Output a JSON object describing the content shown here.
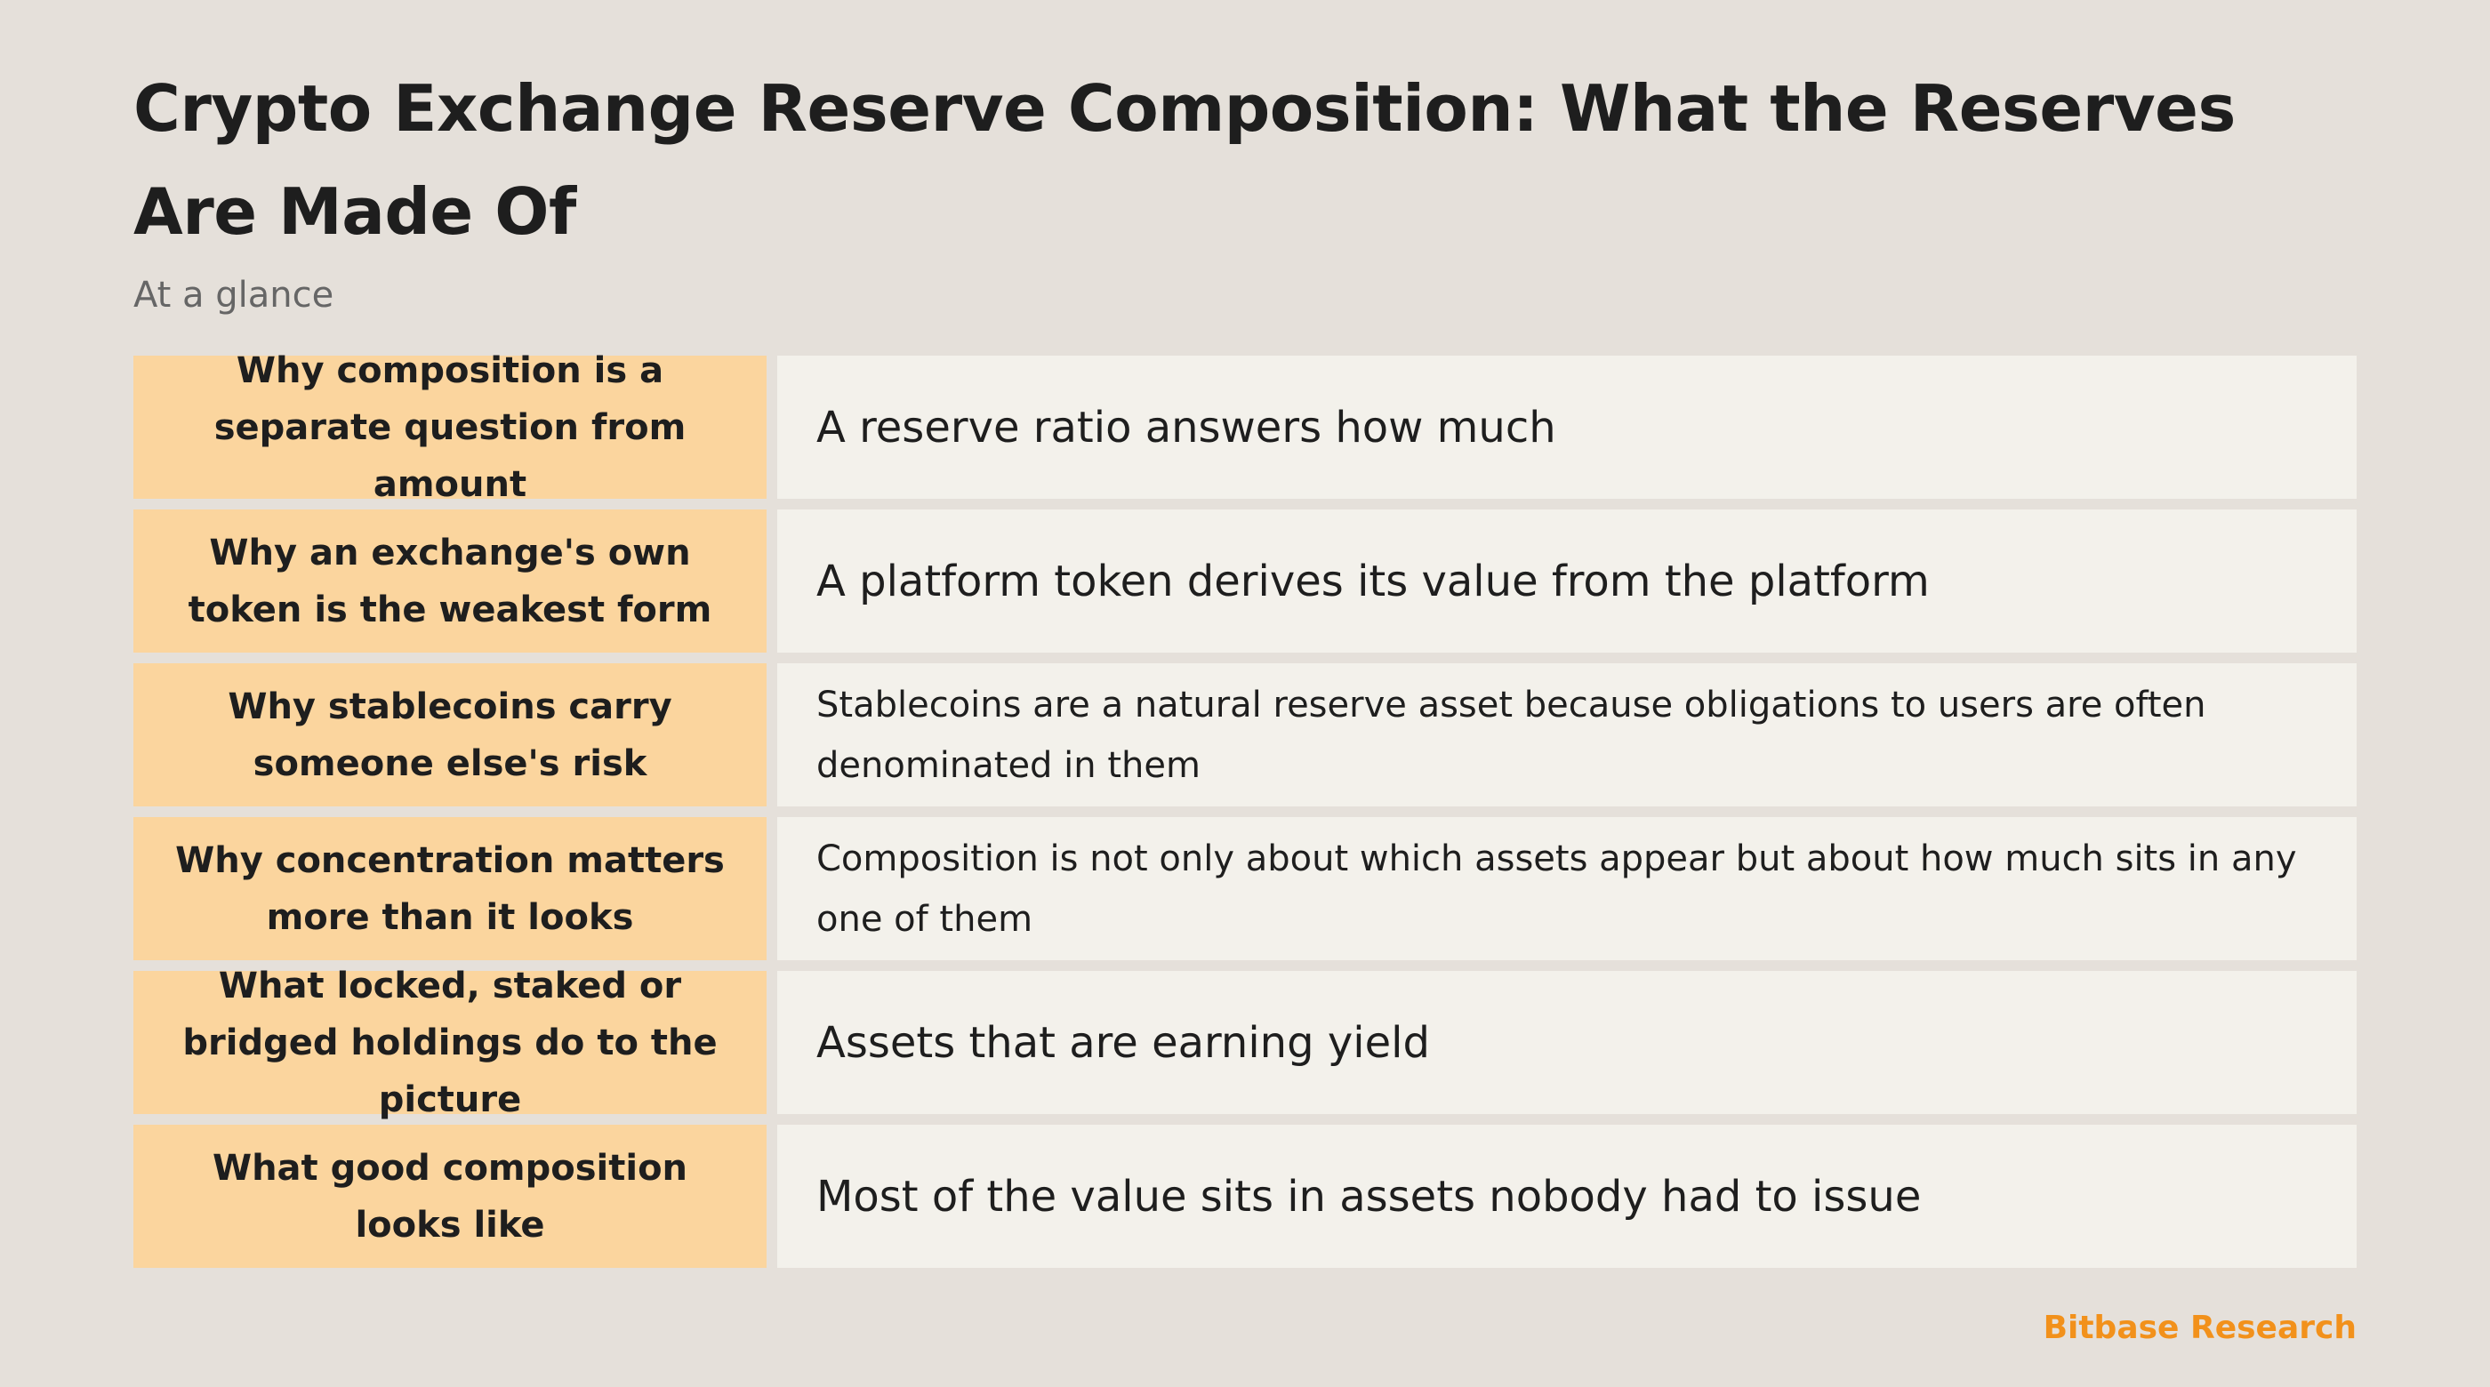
{
  "title": "Crypto Exchange Reserve Composition: What the Reserves Are Made Of",
  "subtitle": "At a glance",
  "rows": [
    {
      "label": "Why composition is a separate question from amount",
      "value": "A reserve ratio answers how much"
    },
    {
      "label": "Why an exchange's own token is the weakest form",
      "value": "A platform token derives its value from the platform"
    },
    {
      "label": "Why stablecoins carry someone else's risk",
      "value": "Stablecoins are a natural reserve asset because obligations to users are often denominated in them"
    },
    {
      "label": "Why concentration matters more than it looks",
      "value": "Composition is not only about which assets appear but about how much sits in any one of them"
    },
    {
      "label": "What locked, staked or bridged holdings do to the picture",
      "value": "Assets that are earning yield"
    },
    {
      "label": "What good composition looks like",
      "value": "Most of the value sits in assets nobody had to issue"
    }
  ],
  "footer": "Bitbase Research",
  "colors": {
    "background": "#e5e0da",
    "label_fill": "#fbd59e",
    "value_fill": "#f3f1eb",
    "accent": "#f2911b"
  }
}
